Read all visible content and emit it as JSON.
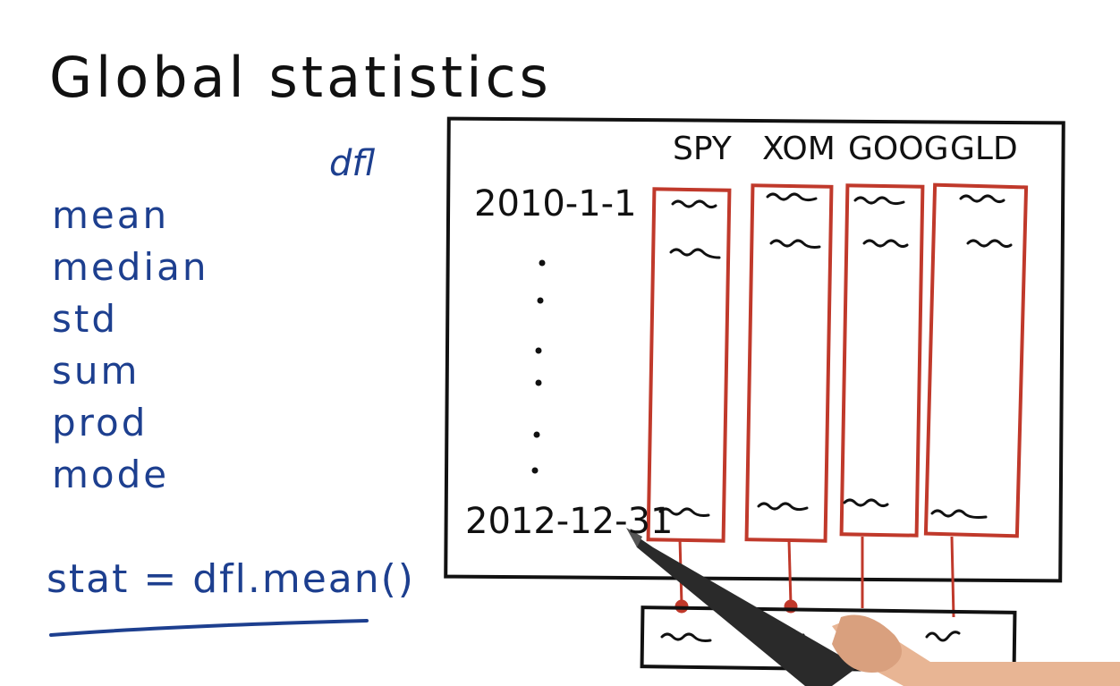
{
  "title": "Global statistics",
  "dataframe_label": "dfl",
  "stats": [
    "mean",
    "median",
    "std",
    "sum",
    "prod",
    "mode"
  ],
  "code": "stat = dfl.mean()",
  "columns": [
    "SPY",
    "XOM",
    "GOOG",
    "GLD"
  ],
  "dates": {
    "start": "2010-1-1",
    "end": "2012-12-31"
  },
  "colors": {
    "ink": "#111111",
    "blue": "#1d3f8f",
    "red": "#c0392b"
  }
}
